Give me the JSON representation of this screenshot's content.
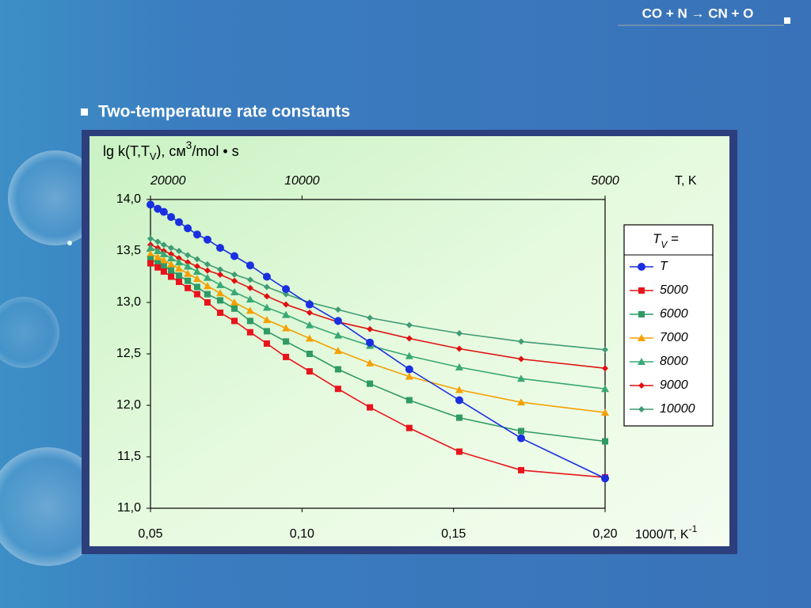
{
  "header": "CO + N → CN + O",
  "slide_title": "Two-temperature rate constants",
  "chart_data": {
    "type": "line",
    "ylabel_parts": [
      "lg k(T,T",
      "V",
      "), см",
      "3",
      "/mol • s"
    ],
    "xlabel_parts": [
      "1000/T, K",
      "-1"
    ],
    "x2label": "T, K",
    "legend_title_parts": [
      "T",
      "V",
      " ="
    ],
    "x": [
      0.05,
      0.0524,
      0.0544,
      0.0568,
      0.0594,
      0.0623,
      0.0654,
      0.0688,
      0.073,
      0.0777,
      0.0829,
      0.0884,
      0.0947,
      0.1025,
      0.1119,
      0.1224,
      0.1354,
      0.1519,
      0.1723,
      0.2
    ],
    "xlim": [
      0.05,
      0.2
    ],
    "ylim": [
      11,
      14
    ],
    "xticks": [
      {
        "value": 0.05,
        "label": "0,05"
      },
      {
        "value": 0.1,
        "label": "0,10"
      },
      {
        "value": 0.15,
        "label": "0,15"
      },
      {
        "value": 0.2,
        "label": "0,20"
      }
    ],
    "x2ticks": [
      {
        "value": 0.05,
        "label": "20000"
      },
      {
        "value": 0.1,
        "label": "10000"
      },
      {
        "value": 0.2,
        "label": "5000"
      }
    ],
    "yticks": [
      {
        "value": 14,
        "label": "14,0"
      },
      {
        "value": 13.5,
        "label": "13,5"
      },
      {
        "value": 13,
        "label": "13,0"
      },
      {
        "value": 12.5,
        "label": "12,5"
      },
      {
        "value": 12,
        "label": "12,0"
      },
      {
        "value": 11.5,
        "label": "11,5"
      },
      {
        "value": 11,
        "label": "11,0"
      }
    ],
    "series": [
      {
        "name": "T",
        "color": "#1a2fe0",
        "marker": "circle",
        "values": [
          13.95,
          13.91,
          13.88,
          13.83,
          13.78,
          13.72,
          13.66,
          13.61,
          13.53,
          13.45,
          13.36,
          13.25,
          13.13,
          12.98,
          12.82,
          12.61,
          12.35,
          12.05,
          11.68,
          11.29
        ]
      },
      {
        "name": "5000",
        "color": "#e8141c",
        "marker": "square",
        "values": [
          13.38,
          13.34,
          13.3,
          13.25,
          13.2,
          13.14,
          13.08,
          13.0,
          12.9,
          12.82,
          12.71,
          12.6,
          12.47,
          12.33,
          12.16,
          11.98,
          11.78,
          11.55,
          11.37,
          11.3
        ]
      },
      {
        "name": "6000",
        "color": "#2e9a64",
        "marker": "square",
        "values": [
          13.42,
          13.38,
          13.35,
          13.31,
          13.26,
          13.21,
          13.15,
          13.08,
          13.02,
          12.94,
          12.82,
          12.72,
          12.62,
          12.5,
          12.35,
          12.21,
          12.05,
          11.88,
          11.75,
          11.65
        ]
      },
      {
        "name": "7000",
        "color": "#f5a000",
        "marker": "triangle",
        "values": [
          13.47,
          13.44,
          13.41,
          13.37,
          13.33,
          13.28,
          13.23,
          13.16,
          13.09,
          13.0,
          12.92,
          12.83,
          12.75,
          12.65,
          12.53,
          12.41,
          12.28,
          12.15,
          12.03,
          11.93
        ]
      },
      {
        "name": "8000",
        "color": "#38a874",
        "marker": "triangle",
        "values": [
          13.53,
          13.5,
          13.47,
          13.43,
          13.39,
          13.35,
          13.3,
          13.24,
          13.17,
          13.1,
          13.03,
          12.95,
          12.88,
          12.78,
          12.68,
          12.58,
          12.48,
          12.37,
          12.26,
          12.16
        ]
      },
      {
        "name": "9000",
        "color": "#e01010",
        "marker": "diamond",
        "values": [
          13.56,
          13.53,
          13.5,
          13.47,
          13.43,
          13.39,
          13.35,
          13.31,
          13.27,
          13.21,
          13.14,
          13.06,
          12.98,
          12.9,
          12.81,
          12.74,
          12.65,
          12.55,
          12.45,
          12.36
        ]
      },
      {
        "name": "10000",
        "color": "#3f9c74",
        "marker": "diamond",
        "values": [
          13.62,
          13.59,
          13.56,
          13.53,
          13.5,
          13.46,
          13.42,
          13.37,
          13.32,
          13.27,
          13.22,
          13.15,
          13.08,
          13.0,
          12.93,
          12.85,
          12.78,
          12.7,
          12.62,
          12.54
        ]
      }
    ]
  }
}
